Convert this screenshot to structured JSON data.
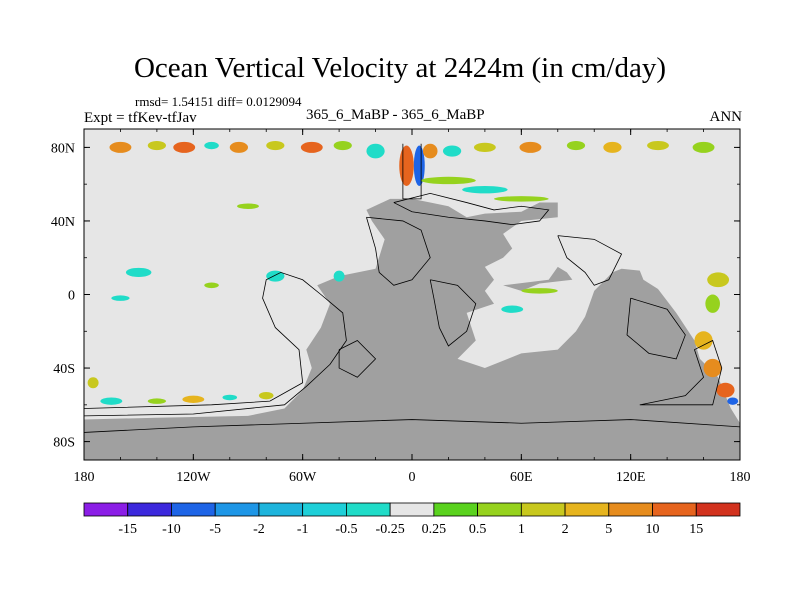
{
  "title": "Ocean Vertical Velocity at 2424m (in cm/day)",
  "stats_line": "rmsd= 1.54151 diff= 0.0129094",
  "experiment_label": "Expt = tfKev-tfJav",
  "case_label": "365_6_MaBP - 365_6_MaBP",
  "season_label": "ANN",
  "chart_data": {
    "type": "heatmap",
    "projection": "cylindrical-equidistant",
    "xlim": [
      -180,
      180
    ],
    "ylim": [
      -90,
      90
    ],
    "x_ticks": [
      {
        "value": -180,
        "label": "180"
      },
      {
        "value": -120,
        "label": "120W"
      },
      {
        "value": -60,
        "label": "60W"
      },
      {
        "value": 0,
        "label": "0"
      },
      {
        "value": 60,
        "label": "60E"
      },
      {
        "value": 120,
        "label": "120E"
      },
      {
        "value": 180,
        "label": "180"
      }
    ],
    "y_ticks": [
      {
        "value": 80,
        "label": "80N"
      },
      {
        "value": 40,
        "label": "40N"
      },
      {
        "value": 0,
        "label": "0"
      },
      {
        "value": -40,
        "label": "40S"
      },
      {
        "value": -80,
        "label": "80S"
      }
    ],
    "colorbar": {
      "labels": [
        "-15",
        "-10",
        "-5",
        "-2",
        "-1",
        "-0.5",
        "-0.25",
        "0.25",
        "0.5",
        "1",
        "2",
        "5",
        "10",
        "15"
      ],
      "colors": [
        "#8b1ee6",
        "#3c28dc",
        "#1e64e6",
        "#1e96e6",
        "#1eb4dc",
        "#1ecfd8",
        "#20dcc8",
        "#e6e6e6",
        "#5ad21e",
        "#96d21e",
        "#c8c81e",
        "#e6b41e",
        "#e68c1e",
        "#e6641e",
        "#d2321e"
      ]
    },
    "ocean_color": "#e6e6e6",
    "land_color": "#a0a0a0",
    "land_polygons": [
      [
        [
          -180,
          -68
        ],
        [
          -140,
          -67
        ],
        [
          -90,
          -66
        ],
        [
          -70,
          -62
        ],
        [
          -60,
          -52
        ],
        [
          -55,
          -40
        ],
        [
          -58,
          -30
        ],
        [
          -50,
          -18
        ],
        [
          -45,
          -5
        ],
        [
          -52,
          5
        ],
        [
          -40,
          10
        ],
        [
          -20,
          14
        ],
        [
          -15,
          30
        ],
        [
          -22,
          40
        ],
        [
          -25,
          46
        ],
        [
          -12,
          52
        ],
        [
          0,
          52
        ],
        [
          10,
          50
        ],
        [
          20,
          48
        ],
        [
          30,
          42
        ],
        [
          40,
          44
        ],
        [
          60,
          45
        ],
        [
          70,
          50
        ],
        [
          80,
          50
        ],
        [
          80,
          42
        ],
        [
          60,
          40
        ],
        [
          50,
          33
        ],
        [
          55,
          25
        ],
        [
          50,
          20
        ],
        [
          40,
          15
        ],
        [
          45,
          8
        ],
        [
          40,
          2
        ],
        [
          45,
          -5
        ],
        [
          30,
          -10
        ],
        [
          35,
          -25
        ],
        [
          25,
          -35
        ],
        [
          40,
          -40
        ],
        [
          60,
          -32
        ],
        [
          80,
          -30
        ],
        [
          90,
          -20
        ],
        [
          95,
          -12
        ],
        [
          100,
          2
        ],
        [
          110,
          12
        ],
        [
          115,
          14
        ],
        [
          125,
          13
        ],
        [
          127,
          8
        ],
        [
          135,
          3
        ],
        [
          145,
          -10
        ],
        [
          155,
          -25
        ],
        [
          158,
          -35
        ],
        [
          168,
          -45
        ],
        [
          172,
          -55
        ],
        [
          175,
          -62
        ],
        [
          180,
          -70
        ],
        [
          180,
          -90
        ],
        [
          -180,
          -90
        ]
      ],
      [
        [
          50,
          5
        ],
        [
          75,
          8
        ],
        [
          80,
          15
        ],
        [
          85,
          12
        ],
        [
          88,
          8
        ],
        [
          70,
          6
        ],
        [
          60,
          2
        ]
      ]
    ],
    "coastlines": [
      [
        [
          -180,
          -62
        ],
        [
          -110,
          -60
        ],
        [
          -78,
          -58
        ],
        [
          -60,
          -48
        ],
        [
          -62,
          -30
        ],
        [
          -75,
          -18
        ],
        [
          -82,
          -2
        ],
        [
          -80,
          8
        ],
        [
          -72,
          12
        ],
        [
          -60,
          8
        ],
        [
          -50,
          0
        ],
        [
          -38,
          -10
        ],
        [
          -36,
          -25
        ],
        [
          -45,
          -38
        ],
        [
          -58,
          -50
        ],
        [
          -70,
          -60
        ],
        [
          -120,
          -65
        ],
        [
          -180,
          -66
        ]
      ],
      [
        [
          -180,
          -75
        ],
        [
          -120,
          -72
        ],
        [
          -60,
          -70
        ],
        [
          0,
          -68
        ],
        [
          60,
          -70
        ],
        [
          120,
          -68
        ],
        [
          180,
          -72
        ]
      ],
      [
        [
          -25,
          42
        ],
        [
          -5,
          40
        ],
        [
          5,
          35
        ],
        [
          10,
          20
        ],
        [
          0,
          8
        ],
        [
          -10,
          5
        ],
        [
          -18,
          12
        ],
        [
          -20,
          25
        ],
        [
          -25,
          42
        ]
      ],
      [
        [
          10,
          8
        ],
        [
          25,
          5
        ],
        [
          35,
          -5
        ],
        [
          30,
          -20
        ],
        [
          20,
          -28
        ],
        [
          15,
          -18
        ],
        [
          12,
          -2
        ],
        [
          10,
          8
        ]
      ],
      [
        [
          -40,
          -30
        ],
        [
          -30,
          -25
        ],
        [
          -20,
          -35
        ],
        [
          -30,
          -45
        ],
        [
          -40,
          -40
        ],
        [
          -40,
          -30
        ]
      ],
      [
        [
          80,
          32
        ],
        [
          100,
          30
        ],
        [
          115,
          22
        ],
        [
          108,
          8
        ],
        [
          100,
          5
        ],
        [
          95,
          12
        ],
        [
          85,
          20
        ],
        [
          80,
          32
        ]
      ],
      [
        [
          120,
          -2
        ],
        [
          140,
          -8
        ],
        [
          150,
          -22
        ],
        [
          145,
          -35
        ],
        [
          130,
          -32
        ],
        [
          118,
          -22
        ],
        [
          120,
          -2
        ]
      ],
      [
        [
          125,
          -60
        ],
        [
          150,
          -55
        ],
        [
          160,
          -45
        ],
        [
          155,
          -30
        ],
        [
          165,
          -25
        ],
        [
          170,
          -40
        ],
        [
          165,
          -60
        ],
        [
          125,
          -60
        ]
      ],
      [
        [
          -10,
          50
        ],
        [
          10,
          55
        ],
        [
          30,
          50
        ],
        [
          45,
          46
        ],
        [
          60,
          48
        ],
        [
          75,
          46
        ],
        [
          70,
          40
        ],
        [
          55,
          38
        ],
        [
          40,
          40
        ],
        [
          20,
          42
        ],
        [
          0,
          45
        ],
        [
          -10,
          50
        ]
      ],
      [
        [
          -5,
          82
        ],
        [
          -5,
          52
        ],
        [
          5,
          52
        ],
        [
          5,
          82
        ]
      ]
    ],
    "anomaly_patches": [
      {
        "lon": -160,
        "lat": 80,
        "w": 12,
        "h": 6,
        "value": 5
      },
      {
        "lon": -140,
        "lat": 81,
        "w": 10,
        "h": 5,
        "value": 1
      },
      {
        "lon": -125,
        "lat": 80,
        "w": 12,
        "h": 6,
        "value": 10
      },
      {
        "lon": -110,
        "lat": 81,
        "w": 8,
        "h": 4,
        "value": -0.5
      },
      {
        "lon": -95,
        "lat": 80,
        "w": 10,
        "h": 6,
        "value": 5
      },
      {
        "lon": -75,
        "lat": 81,
        "w": 10,
        "h": 5,
        "value": 1
      },
      {
        "lon": -55,
        "lat": 80,
        "w": 12,
        "h": 6,
        "value": 10
      },
      {
        "lon": -38,
        "lat": 81,
        "w": 10,
        "h": 5,
        "value": 0.5
      },
      {
        "lon": -20,
        "lat": 78,
        "w": 10,
        "h": 8,
        "value": -0.5
      },
      {
        "lon": -3,
        "lat": 70,
        "w": 8,
        "h": 22,
        "value": 10
      },
      {
        "lon": 4,
        "lat": 70,
        "w": 6,
        "h": 22,
        "value": -10
      },
      {
        "lon": 10,
        "lat": 78,
        "w": 8,
        "h": 8,
        "value": 5
      },
      {
        "lon": 22,
        "lat": 78,
        "w": 10,
        "h": 6,
        "value": -0.5
      },
      {
        "lon": 40,
        "lat": 80,
        "w": 12,
        "h": 5,
        "value": 1
      },
      {
        "lon": 65,
        "lat": 80,
        "w": 12,
        "h": 6,
        "value": 5
      },
      {
        "lon": 90,
        "lat": 81,
        "w": 10,
        "h": 5,
        "value": 0.5
      },
      {
        "lon": 110,
        "lat": 80,
        "w": 10,
        "h": 6,
        "value": 2
      },
      {
        "lon": 135,
        "lat": 81,
        "w": 12,
        "h": 5,
        "value": 1
      },
      {
        "lon": 160,
        "lat": 80,
        "w": 12,
        "h": 6,
        "value": 0.5
      },
      {
        "lon": 20,
        "lat": 62,
        "w": 30,
        "h": 4,
        "value": 0.5
      },
      {
        "lon": 40,
        "lat": 57,
        "w": 25,
        "h": 4,
        "value": -0.5
      },
      {
        "lon": 60,
        "lat": 52,
        "w": 30,
        "h": 3,
        "value": 0.5
      },
      {
        "lon": -90,
        "lat": 48,
        "w": 12,
        "h": 3,
        "value": 0.5
      },
      {
        "lon": -75,
        "lat": 10,
        "w": 10,
        "h": 6,
        "value": -0.5
      },
      {
        "lon": -110,
        "lat": 5,
        "w": 8,
        "h": 3,
        "value": 0.5
      },
      {
        "lon": -160,
        "lat": -2,
        "w": 10,
        "h": 3,
        "value": -0.5
      },
      {
        "lon": -40,
        "lat": 10,
        "w": 6,
        "h": 6,
        "value": -0.5
      },
      {
        "lon": 70,
        "lat": 2,
        "w": 20,
        "h": 3,
        "value": 0.5
      },
      {
        "lon": 55,
        "lat": -8,
        "w": 12,
        "h": 4,
        "value": -0.5
      },
      {
        "lon": 168,
        "lat": 8,
        "w": 12,
        "h": 8,
        "value": 1
      },
      {
        "lon": 165,
        "lat": -5,
        "w": 8,
        "h": 10,
        "value": 0.5
      },
      {
        "lon": 160,
        "lat": -25,
        "w": 10,
        "h": 10,
        "value": 2
      },
      {
        "lon": 165,
        "lat": -40,
        "w": 10,
        "h": 10,
        "value": 5
      },
      {
        "lon": 172,
        "lat": -52,
        "w": 10,
        "h": 8,
        "value": 10
      },
      {
        "lon": 176,
        "lat": -58,
        "w": 6,
        "h": 4,
        "value": -10
      },
      {
        "lon": -175,
        "lat": -48,
        "w": 6,
        "h": 6,
        "value": 1
      },
      {
        "lon": -165,
        "lat": -58,
        "w": 12,
        "h": 4,
        "value": -0.5
      },
      {
        "lon": -140,
        "lat": -58,
        "w": 10,
        "h": 3,
        "value": 0.5
      },
      {
        "lon": -120,
        "lat": -57,
        "w": 12,
        "h": 4,
        "value": 2
      },
      {
        "lon": -100,
        "lat": -56,
        "w": 8,
        "h": 3,
        "value": -0.5
      },
      {
        "lon": -80,
        "lat": -55,
        "w": 8,
        "h": 4,
        "value": 1
      },
      {
        "lon": -150,
        "lat": 12,
        "w": 14,
        "h": 5,
        "value": -0.5
      }
    ]
  }
}
